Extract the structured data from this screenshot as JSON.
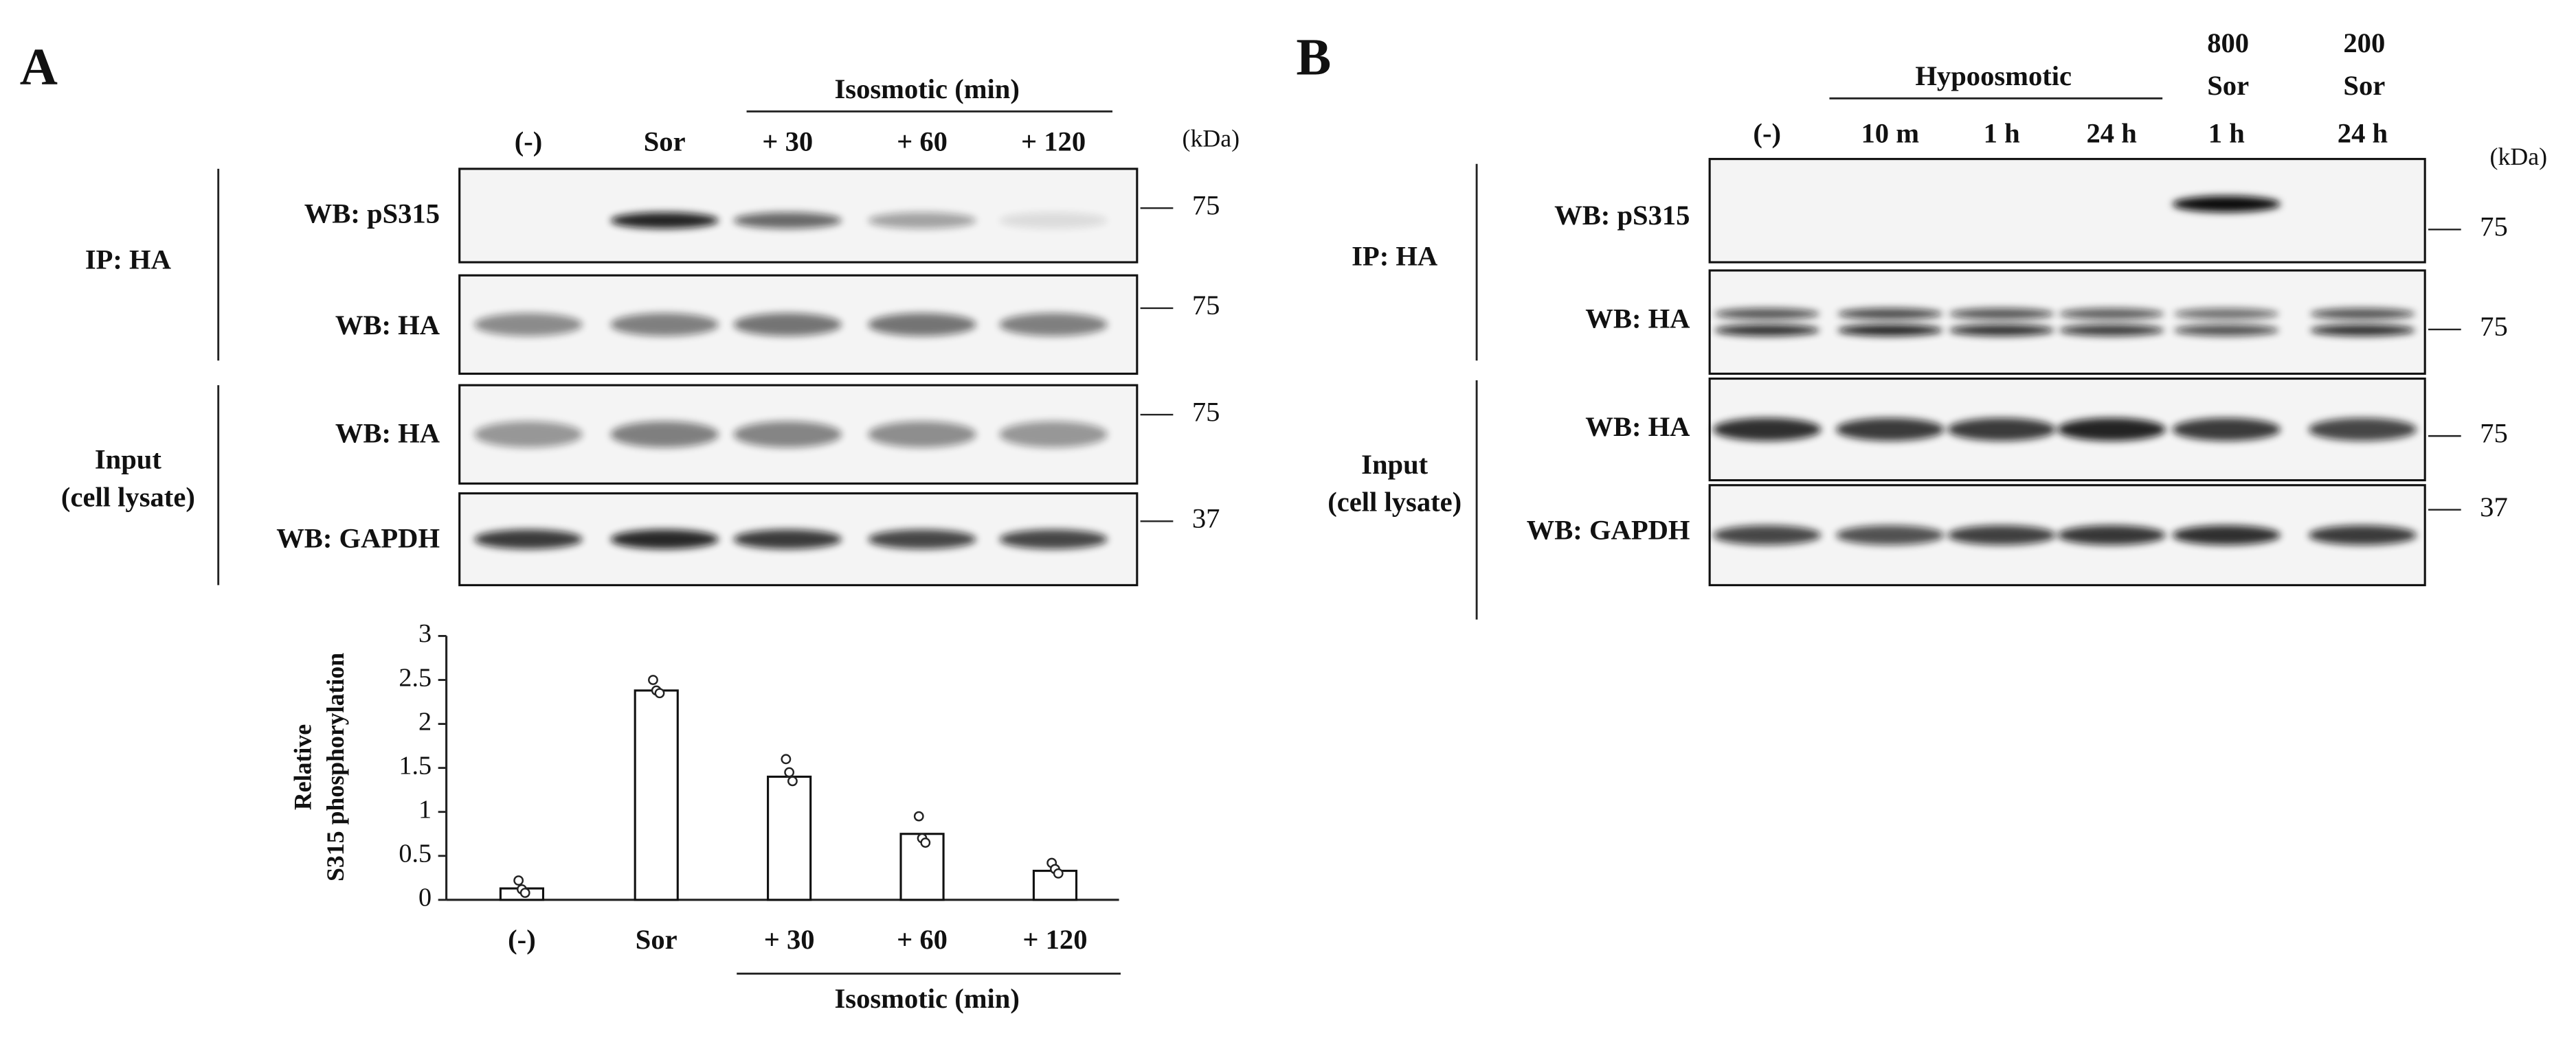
{
  "panels": {
    "A": {
      "letter": "A",
      "header": "Isosmotic  (min)",
      "lanes": [
        "(-)",
        "Sor",
        "+ 30",
        "+ 60",
        "+ 120"
      ],
      "kda": "(kDa)",
      "blots": [
        {
          "label": "WB: pS315",
          "mw": "75"
        },
        {
          "label": "WB: HA",
          "mw": "75"
        },
        {
          "label": "WB: HA",
          "mw": "75"
        },
        {
          "label": "WB: GAPDH",
          "mw": "37"
        }
      ],
      "groups": [
        [
          "IP: HA"
        ],
        [
          "Input",
          "(cell lysate)"
        ]
      ]
    },
    "B": {
      "letter": "B",
      "header": "Hypoosmotic",
      "top": [
        [
          "800",
          "Sor"
        ],
        [
          "200",
          "Sor"
        ]
      ],
      "lanes": [
        "(-)",
        "10 m",
        "1 h",
        "24 h",
        "1 h",
        "24 h"
      ],
      "kda": "(kDa)",
      "blots": [
        {
          "label": "WB: pS315",
          "mw": "75"
        },
        {
          "label": "WB: HA",
          "mw": "75"
        },
        {
          "label": "WB: HA",
          "mw": "75"
        },
        {
          "label": "WB: GAPDH",
          "mw": "37"
        }
      ],
      "groups": [
        [
          "IP: HA"
        ],
        [
          "Input",
          "(cell lysate)"
        ]
      ]
    }
  },
  "chart_data": {
    "type": "bar",
    "ylabel": [
      "Relative",
      "S315 phosphorylation"
    ],
    "categories": [
      "(-)",
      "Sor",
      "+ 30",
      "+ 60",
      "+ 120"
    ],
    "values": [
      0.13,
      2.38,
      1.4,
      0.75,
      0.33
    ],
    "points": [
      [
        0.22,
        0.12,
        0.08
      ],
      [
        2.5,
        2.38,
        2.35
      ],
      [
        1.6,
        1.45,
        1.35
      ],
      [
        0.95,
        0.7,
        0.65
      ],
      [
        0.42,
        0.35,
        0.3
      ]
    ],
    "xgroup": "Isosmotic  (min)",
    "color": "#ffffff",
    "ylim": [
      0,
      3
    ],
    "yticks": [
      0,
      0.5,
      1,
      1.5,
      2,
      2.5,
      3
    ]
  }
}
